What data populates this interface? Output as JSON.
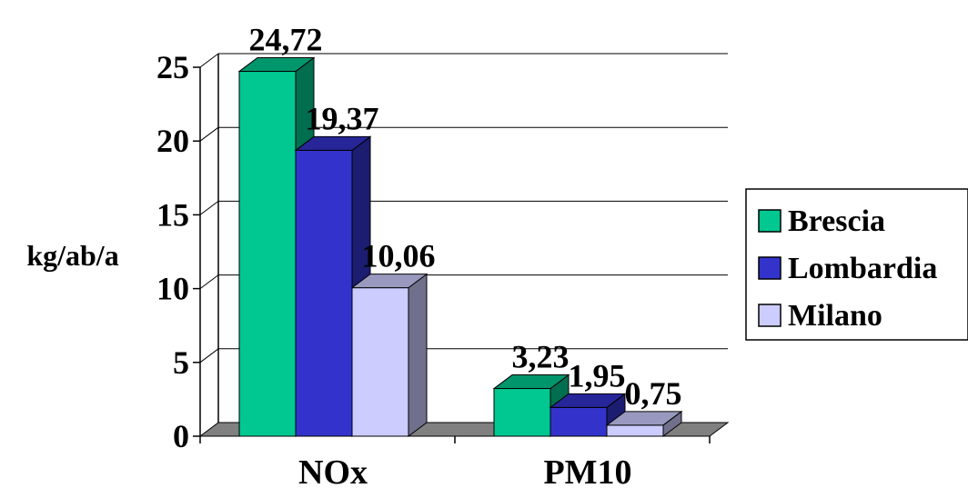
{
  "chart_data": {
    "type": "bar",
    "categories": [
      "NOx",
      "PM10"
    ],
    "series": [
      {
        "name": "Brescia",
        "values": [
          24.72,
          3.23
        ],
        "labels": [
          "24,72",
          "3,23"
        ],
        "color": "#00C890"
      },
      {
        "name": "Lombardia",
        "values": [
          19.37,
          1.95
        ],
        "labels": [
          "19,37",
          "1,95"
        ],
        "color": "#3333CC"
      },
      {
        "name": "Milano",
        "values": [
          10.06,
          0.75
        ],
        "labels": [
          "10,06",
          "0,75"
        ],
        "color": "#CCCCFF"
      }
    ],
    "ylabel": "kg/ab/a",
    "ylim": [
      0,
      25
    ],
    "yticks": [
      0,
      5,
      10,
      15,
      20,
      25
    ],
    "grid": true,
    "style": "3d",
    "legend": "right"
  }
}
